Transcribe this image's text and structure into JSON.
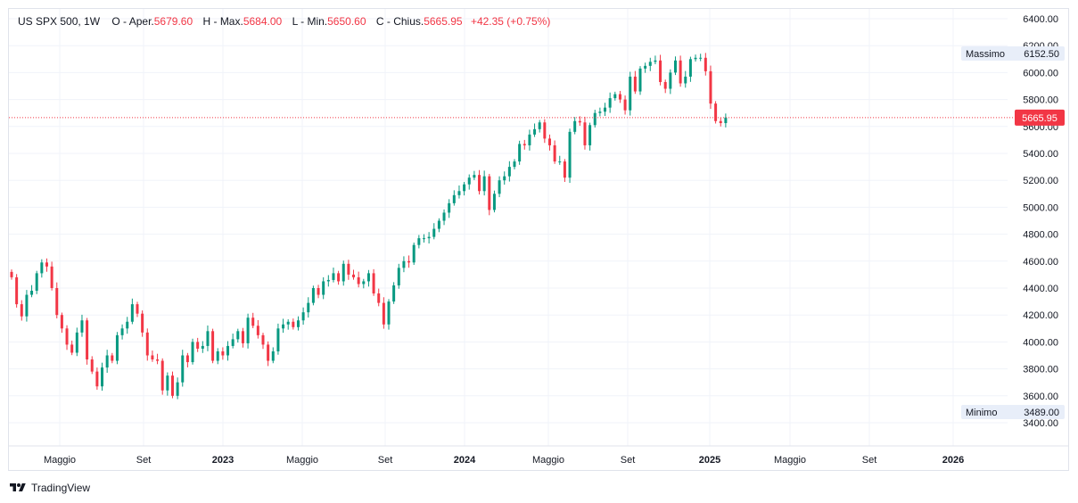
{
  "header": {
    "symbol": "US SPX 500, 1W",
    "open_label": "O - Aper.",
    "open_value": "5679.60",
    "high_label": "H - Max.",
    "high_value": "5684.00",
    "low_label": "L - Min.",
    "low_value": "5650.60",
    "close_label": "C - Chius.",
    "close_value": "5665.95",
    "change": "+42.35 (+0.75%)"
  },
  "footer": {
    "brand": "TradingView"
  },
  "colors": {
    "up": "#089981",
    "down": "#f23645",
    "grid": "#f0f3fa",
    "label_bg": "#e8eef9"
  },
  "chart_data": {
    "type": "candlestick",
    "title": "US SPX 500, 1W",
    "y_ticks": [
      "6400.00",
      "6200.00",
      "6000.00",
      "5800.00",
      "5600.00",
      "5400.00",
      "5200.00",
      "5000.00",
      "4800.00",
      "4600.00",
      "4400.00",
      "4200.00",
      "4000.00",
      "3800.00",
      "3600.00",
      "3400.00"
    ],
    "x_ticks": [
      "Maggio",
      "Set",
      "2023",
      "Maggio",
      "Set",
      "2024",
      "Maggio",
      "Set",
      "2025",
      "Maggio",
      "Set",
      "2026"
    ],
    "ylim": [
      3300,
      6480
    ],
    "max_label": "Massimo",
    "max_value": "6152.50",
    "min_label": "Minimo",
    "min_value": "3489.00",
    "last_price": "5665.95",
    "weekly_closes": [
      4480,
      4280,
      4190,
      4350,
      4380,
      4510,
      4590,
      4560,
      4400,
      4200,
      4100,
      3980,
      3920,
      4070,
      4160,
      3870,
      3780,
      3670,
      3810,
      3900,
      3860,
      4050,
      4100,
      4150,
      4280,
      4210,
      4070,
      3900,
      3870,
      3860,
      3640,
      3750,
      3600,
      3700,
      3900,
      3850,
      4000,
      3950,
      3970,
      4080,
      3860,
      3930,
      3900,
      3970,
      4020,
      4080,
      3990,
      4180,
      4120,
      4050,
      3980,
      3860,
      3930,
      4100,
      4130,
      4150,
      4110,
      4160,
      4220,
      4290,
      4400,
      4350,
      4450,
      4460,
      4510,
      4450,
      4580,
      4500,
      4480,
      4430,
      4450,
      4510,
      4360,
      4290,
      4130,
      4300,
      4420,
      4550,
      4600,
      4590,
      4720,
      4770,
      4770,
      4780,
      4840,
      4900,
      4960,
      5030,
      5090,
      5120,
      5170,
      5220,
      5240,
      5120,
      5230,
      4980,
      5100,
      5200,
      5230,
      5300,
      5340,
      5470,
      5460,
      5540,
      5580,
      5630,
      5510,
      5460,
      5340,
      5340,
      5220,
      5560,
      5640,
      5630,
      5460,
      5610,
      5700,
      5710,
      5740,
      5810,
      5840,
      5800,
      5720,
      5970,
      5860,
      6030,
      6050,
      6080,
      6090,
      5930,
      5880,
      6000,
      6090,
      5920,
      5970,
      6100,
      6110,
      6110,
      6010,
      5770,
      5640,
      5625,
      5666
    ]
  }
}
